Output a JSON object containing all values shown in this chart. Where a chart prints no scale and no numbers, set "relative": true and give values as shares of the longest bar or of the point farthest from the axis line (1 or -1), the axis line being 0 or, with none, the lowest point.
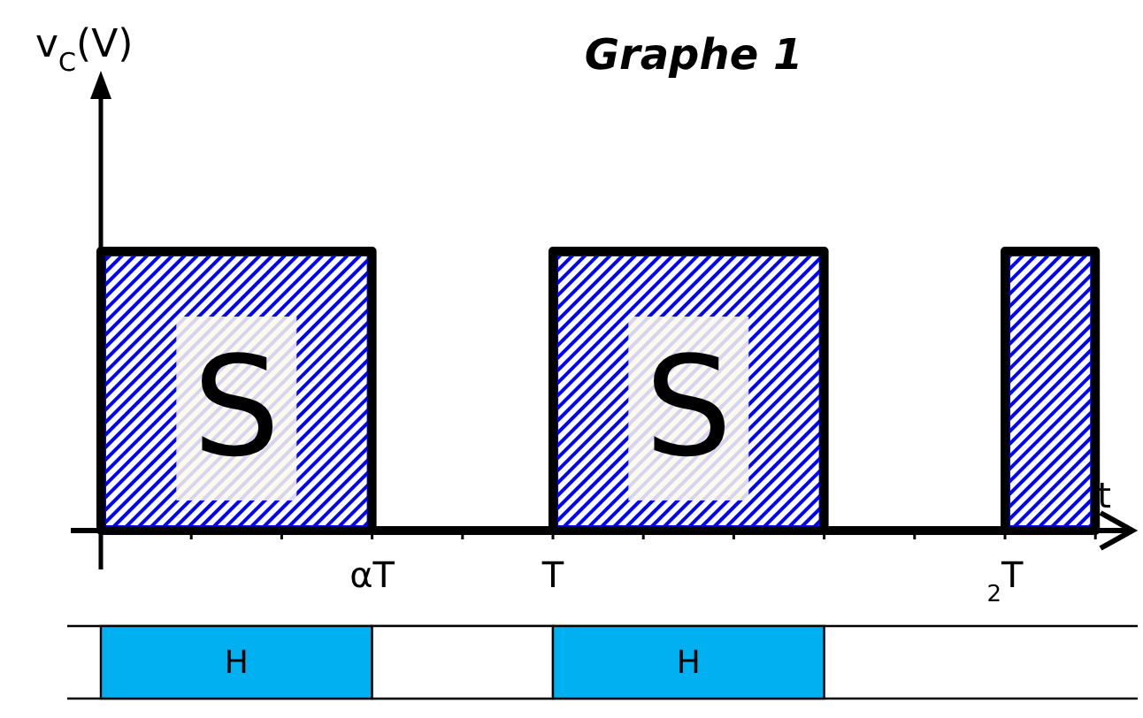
{
  "chart_data": [
    {
      "type": "step",
      "title": "Graphe 1",
      "ylabel": "v$_{C}$(V)",
      "xlabel": "t",
      "relative": true,
      "categories": [
        null,
        null,
        null,
        "αT",
        null,
        "T",
        null,
        null,
        null,
        null,
        "$_{2}$T",
        null
      ],
      "series": [
        {
          "type": "area",
          "color": "#0000ff",
          "values": [
            1,
            1,
            1,
            0,
            0,
            1,
            1,
            1,
            0,
            0,
            1,
            1
          ]
        }
      ],
      "annotations": [
        "S",
        "S"
      ]
    },
    {
      "type": "bar",
      "orientation": "horizontal",
      "stacked": true,
      "relative": true,
      "categories": [
        null
      ],
      "series": [
        {
          "name": "H",
          "color": "#00b0f0",
          "values": [
            0.375
          ]
        },
        {
          "color": "#ffffff",
          "values": [
            0.25
          ]
        },
        {
          "name": "H",
          "color": "#00b0f0",
          "values": [
            0.375
          ]
        }
      ]
    }
  ]
}
